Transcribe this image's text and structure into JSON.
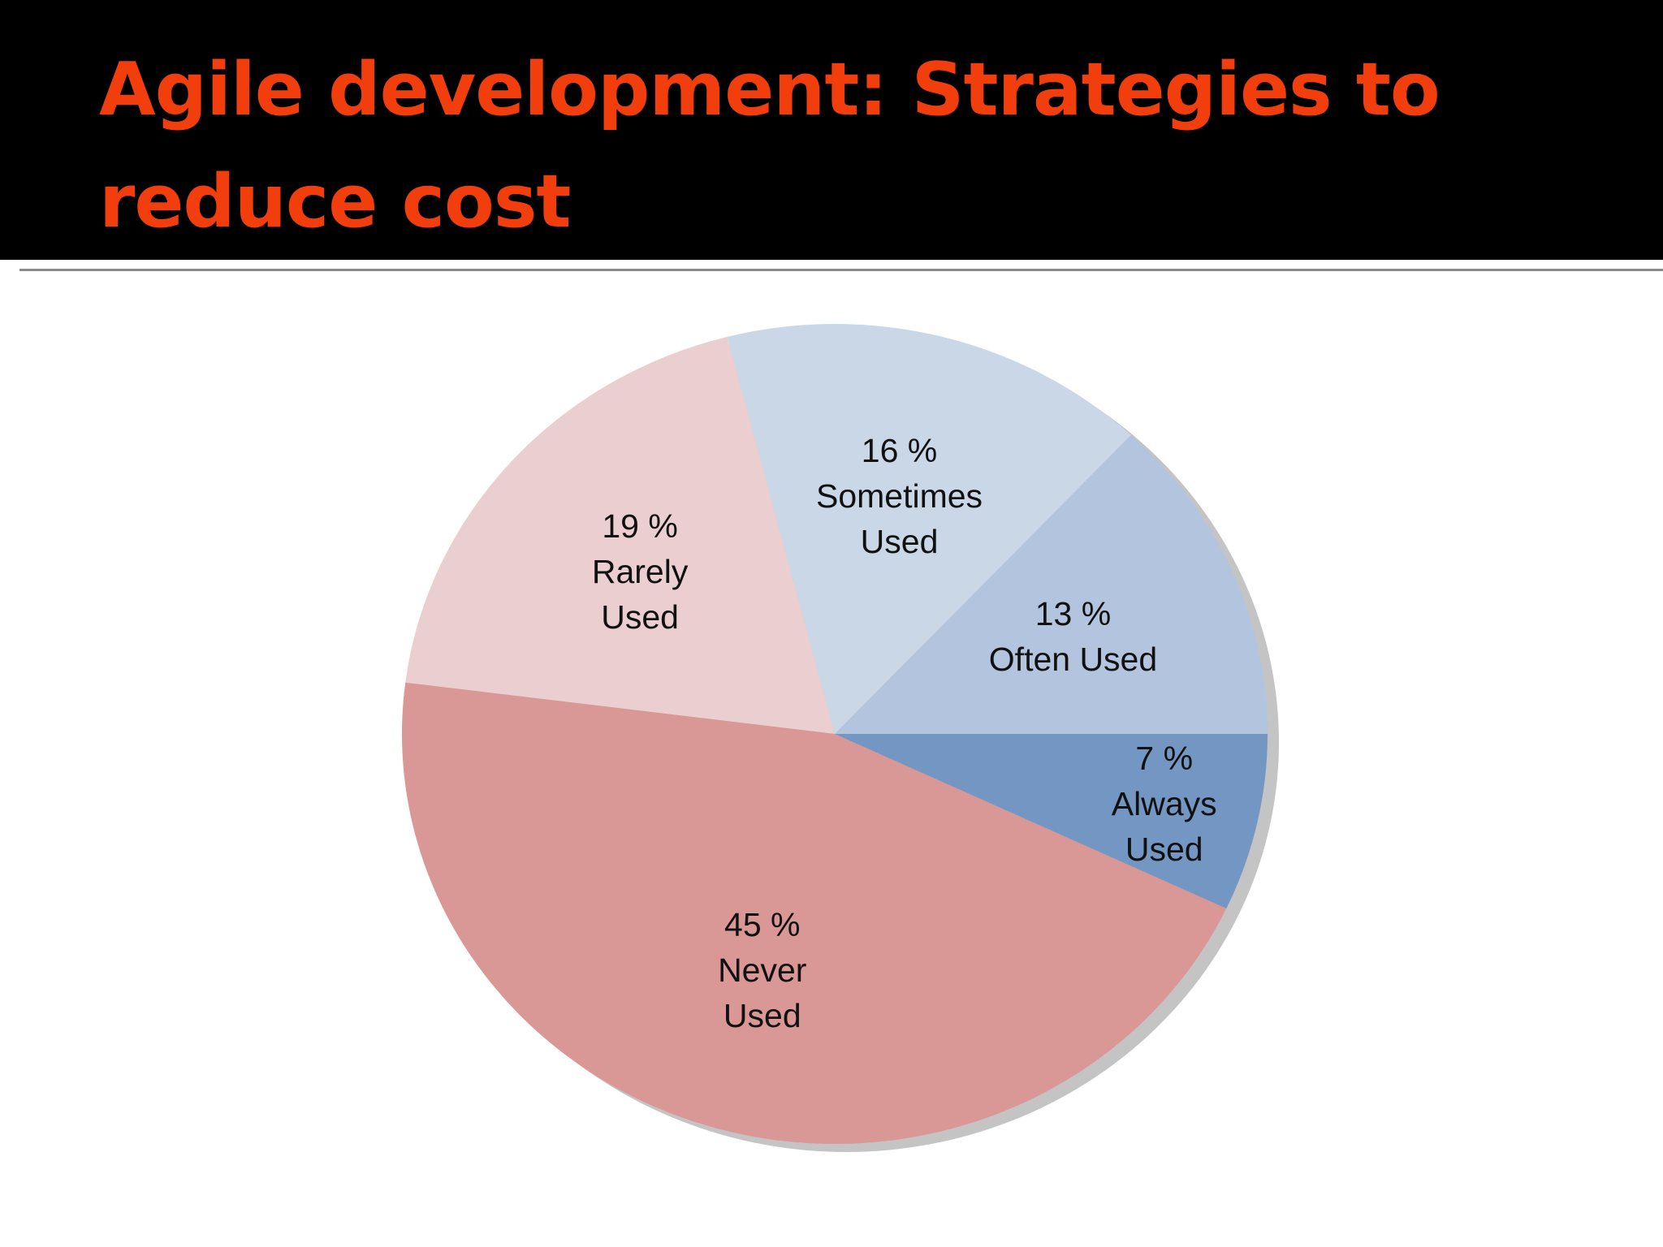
{
  "chart_data": {
    "type": "pie",
    "title": "Agile development: Strategies to reduce cost",
    "categories": [
      "Often Used",
      "Sometimes Used",
      "Rarely Used",
      "Never Used",
      "Always Used"
    ],
    "values": [
      13,
      16,
      19,
      45,
      7
    ],
    "value_labels": [
      "13 %",
      "16 %",
      "19 %",
      "45 %",
      "7 %"
    ],
    "colors": [
      "#b2c4de",
      "#c9d7e7",
      "#ebcfd0",
      "#d99795",
      "#7396c2"
    ]
  }
}
